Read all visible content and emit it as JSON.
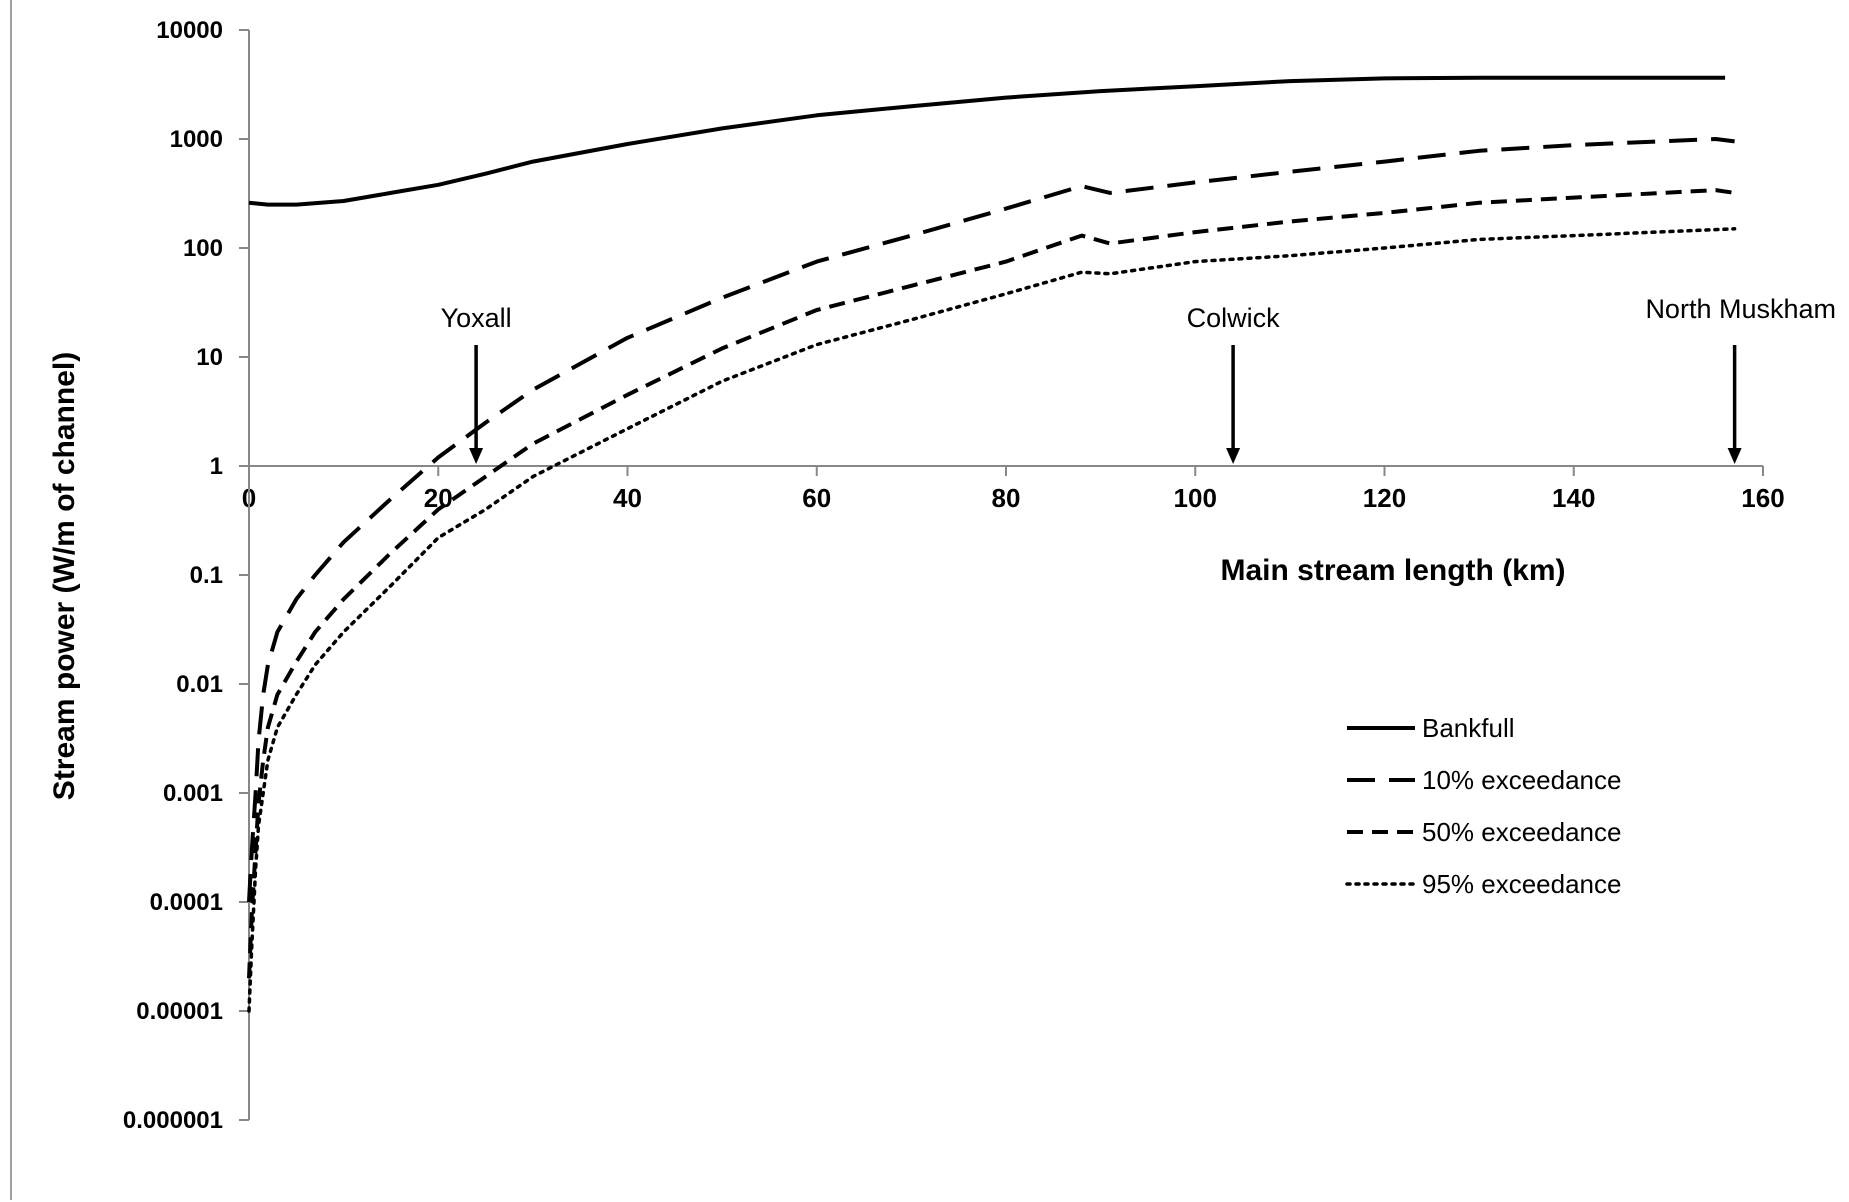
{
  "chart_data": {
    "type": "line",
    "xlabel": "Main stream length (km)",
    "ylabel": "Stream power (W/m of channel)",
    "xlim": [
      0,
      160
    ],
    "ylim": [
      1e-06,
      10000
    ],
    "yscale": "log",
    "grid": false,
    "legend_position": "bottom-right",
    "x_ticks": [
      "0",
      "20",
      "40",
      "60",
      "80",
      "100",
      "120",
      "140",
      "160"
    ],
    "y_ticks": [
      "10000",
      "1000",
      "100",
      "10",
      "1",
      "0.1",
      "0.01",
      "0.001",
      "0.0001",
      "0.00001",
      "0.000001"
    ],
    "series": [
      {
        "name": "Bankfull",
        "style": "solid",
        "x": [
          0,
          2,
          5,
          10,
          15,
          20,
          25,
          30,
          40,
          50,
          60,
          70,
          80,
          90,
          100,
          110,
          120,
          130,
          140,
          156
        ],
        "y": [
          260,
          250,
          250,
          270,
          320,
          380,
          480,
          620,
          900,
          1250,
          1650,
          2000,
          2400,
          2750,
          3050,
          3400,
          3600,
          3650,
          3650,
          3650
        ]
      },
      {
        "name": "10% exceedance",
        "style": "long-dash",
        "x": [
          0,
          0.3,
          0.7,
          1,
          1.5,
          2,
          3,
          5,
          7,
          10,
          15,
          20,
          25,
          30,
          40,
          50,
          60,
          70,
          80,
          88,
          91,
          100,
          110,
          120,
          130,
          140,
          155,
          157
        ],
        "y": [
          0.0001,
          0.0003,
          0.001,
          0.003,
          0.008,
          0.015,
          0.03,
          0.06,
          0.1,
          0.2,
          0.5,
          1.2,
          2.5,
          5,
          15,
          35,
          75,
          130,
          230,
          370,
          320,
          400,
          500,
          620,
          780,
          880,
          1000,
          950
        ]
      },
      {
        "name": "50% exceedance",
        "style": "short-dash",
        "x": [
          0,
          0.3,
          0.7,
          1,
          1.5,
          2,
          3,
          5,
          7,
          10,
          15,
          20,
          25,
          30,
          40,
          50,
          60,
          70,
          80,
          88,
          91,
          100,
          110,
          120,
          130,
          140,
          155,
          157
        ],
        "y": [
          2e-05,
          8e-05,
          0.0003,
          0.0008,
          0.002,
          0.004,
          0.008,
          0.016,
          0.03,
          0.06,
          0.16,
          0.4,
          0.8,
          1.6,
          4.5,
          12,
          27,
          45,
          75,
          130,
          110,
          140,
          175,
          210,
          260,
          290,
          340,
          320
        ]
      },
      {
        "name": "95% exceedance",
        "style": "dotted",
        "x": [
          0,
          0.3,
          0.7,
          1,
          1.5,
          2,
          3,
          5,
          7,
          10,
          15,
          20,
          25,
          30,
          40,
          50,
          60,
          70,
          80,
          88,
          91,
          100,
          110,
          120,
          130,
          140,
          157
        ],
        "y": [
          1e-05,
          4e-05,
          0.0002,
          0.0005,
          0.001,
          0.002,
          0.004,
          0.008,
          0.015,
          0.03,
          0.08,
          0.22,
          0.4,
          0.8,
          2.2,
          6,
          13,
          22,
          38,
          60,
          58,
          75,
          85,
          100,
          120,
          130,
          150
        ]
      }
    ],
    "annotations": [
      {
        "text": "Yoxall",
        "x": 24
      },
      {
        "text": "Colwick",
        "x": 104
      },
      {
        "text": "North Muskham",
        "x": 157
      }
    ]
  }
}
